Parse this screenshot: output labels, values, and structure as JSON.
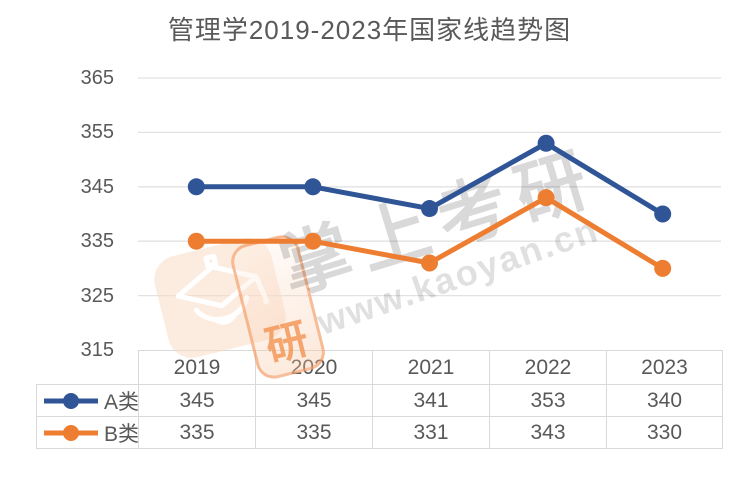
{
  "title": "管理学2019-2023年国家线趋势图",
  "watermark": {
    "brand_text": "掌上考研",
    "url_text": "www.kaoyan.cn",
    "logo_char": "研",
    "cap_icon": "graduation-cap-icon"
  },
  "colors": {
    "series_a_blue": "#2F5597",
    "series_b_orange": "#ED7D31",
    "gridline": "#E2E2E2",
    "table_border": "#D9D9D9",
    "text_gray": "#595959",
    "watermark_peach": "#FADCC6",
    "watermark_orange": "#F2905C",
    "watermark_gray": "#D2D2D2"
  },
  "chart_data": {
    "type": "line",
    "title": "管理学2019-2023年国家线趋势图",
    "categories": [
      "2019",
      "2020",
      "2021",
      "2022",
      "2023"
    ],
    "series": [
      {
        "name": "A类",
        "color": "#2F5597",
        "values": [
          345,
          345,
          341,
          353,
          340
        ]
      },
      {
        "name": "B类",
        "color": "#ED7D31",
        "values": [
          335,
          335,
          331,
          343,
          330
        ]
      }
    ],
    "yticks": [
      315,
      325,
      335,
      345,
      355,
      365
    ],
    "ylim": [
      315,
      365
    ],
    "xlabel": "",
    "ylabel": "",
    "grid": "horizontal",
    "legend_position": "data-table-left-column",
    "data_table": true,
    "marker": "circle",
    "line_width": 5
  }
}
